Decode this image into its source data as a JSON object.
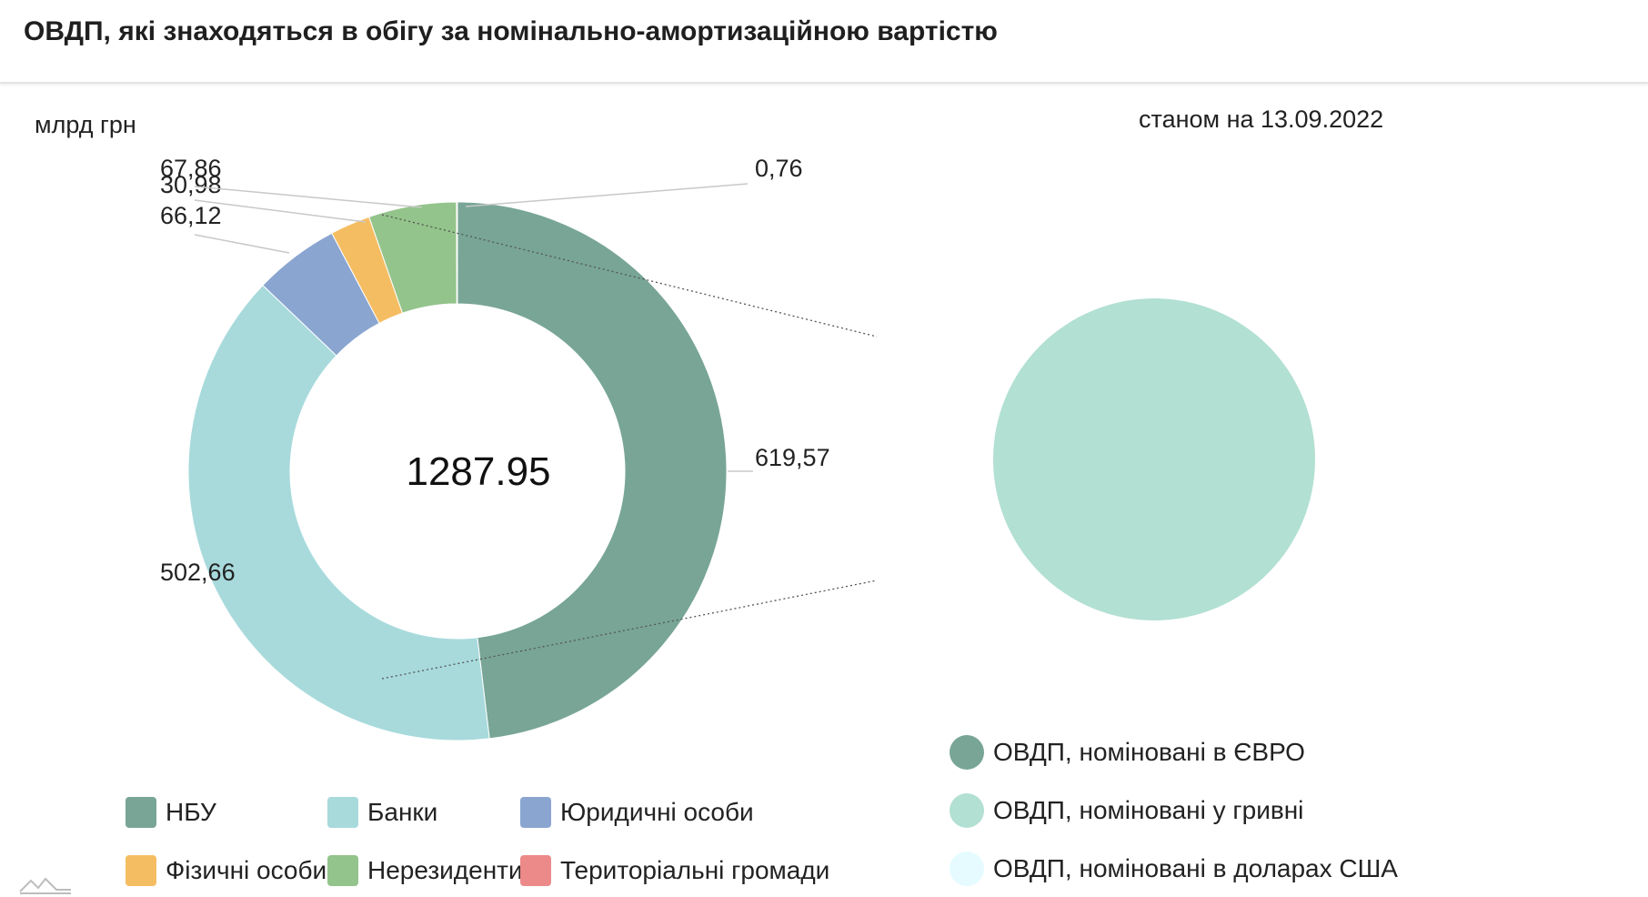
{
  "header": {
    "title": "ОВДП, які знаходяться в обігу за номінально-амортизаційною вартістю"
  },
  "unit_label": "млрд грн",
  "as_of_label": "станом на 13.09.2022",
  "center_total": "1287.95",
  "chart_data": [
    {
      "type": "pie",
      "subtype": "donut",
      "slices": [
        {
          "name": "НБУ",
          "value": 619.57,
          "label": "619,57",
          "color": "#78a596"
        },
        {
          "name": "Банки",
          "value": 502.66,
          "label": "502,66",
          "color": "#a8dadc"
        },
        {
          "name": "Юридичні особи",
          "value": 66.12,
          "label": "66,12",
          "color": "#8aa5d0"
        },
        {
          "name": "Фізичні особи",
          "value": 30.98,
          "label": "30,98",
          "color": "#f5bd62"
        },
        {
          "name": "Нерезиденти",
          "value": 67.86,
          "label": "67,86",
          "color": "#93c48b"
        },
        {
          "name": "Територіальні громади",
          "value": 0.76,
          "label": "0,76",
          "color": "#ec8a8a"
        }
      ],
      "center_label": "1287.95"
    },
    {
      "type": "pie",
      "slices": [
        {
          "name": "ОВДП, номіновані в ЄВРО",
          "value": 0,
          "color": "#78a596"
        },
        {
          "name": "ОВДП, номіновані у гривні",
          "value": 100,
          "color": "#b2e0d3"
        },
        {
          "name": "ОВДП, номіновані в доларах США",
          "value": 0,
          "color": "#e5fbff"
        }
      ]
    }
  ],
  "legend_left": [
    {
      "label": "НБУ",
      "color": "#78a596"
    },
    {
      "label": "Банки",
      "color": "#a8dadc"
    },
    {
      "label": "Юридичні особи",
      "color": "#8aa5d0"
    },
    {
      "label": "Фізичні особи",
      "color": "#f5bd62"
    },
    {
      "label": "Нерезиденти",
      "color": "#93c48b"
    },
    {
      "label": "Територіальні громади",
      "color": "#ec8a8a"
    }
  ],
  "legend_right": [
    {
      "label": "ОВДП, номіновані в ЄВРО",
      "color": "#78a596"
    },
    {
      "label": "ОВДП, номіновані у гривні",
      "color": "#b2e0d3"
    },
    {
      "label": "ОВДП, номіновані в доларах США",
      "color": "#e5fbff"
    }
  ]
}
